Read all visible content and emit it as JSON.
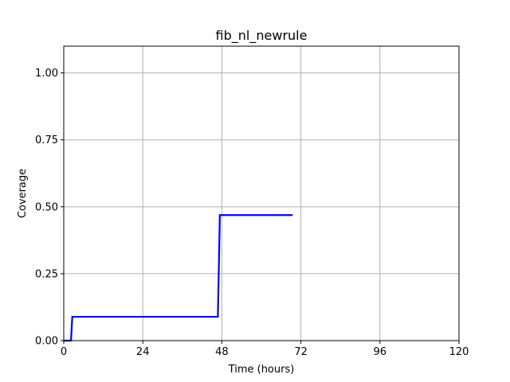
{
  "chart_data": {
    "type": "line",
    "title": "fib_nl_newrule",
    "xlabel": "Time (hours)",
    "ylabel": "Coverage",
    "xlim": [
      0,
      120
    ],
    "ylim": [
      0,
      1.1
    ],
    "xticks": [
      0,
      24,
      48,
      72,
      96,
      120
    ],
    "yticks": [
      0.0,
      0.25,
      0.5,
      0.75,
      1.0
    ],
    "xtick_labels": [
      "0",
      "24",
      "48",
      "72",
      "96",
      "120"
    ],
    "ytick_labels": [
      "0.00",
      "0.25",
      "0.50",
      "0.75",
      "1.00"
    ],
    "grid": true,
    "legend": false,
    "series": [
      {
        "color": "#0000ff",
        "x": [
          0,
          2.2,
          2.6,
          46.8,
          47.4,
          69.5
        ],
        "y": [
          0,
          0,
          0.089,
          0.089,
          0.469,
          0.469
        ]
      }
    ]
  }
}
